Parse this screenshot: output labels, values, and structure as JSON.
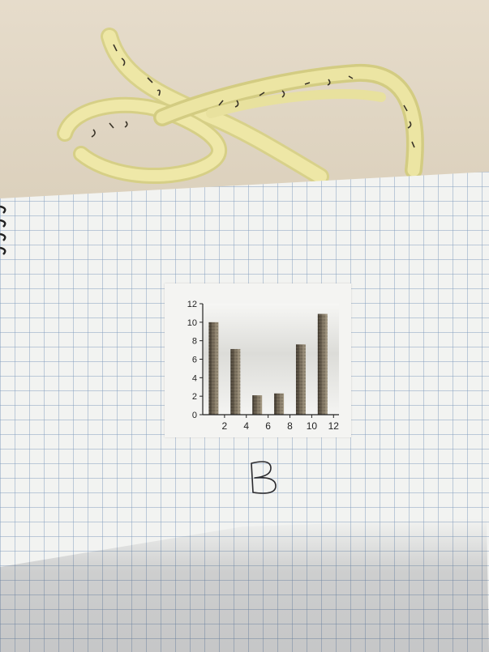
{
  "chart_data": {
    "type": "bar",
    "title": "",
    "xlabel": "",
    "ylabel": "",
    "categories": [
      1,
      3,
      5,
      7,
      9,
      11
    ],
    "values": [
      10,
      7.1,
      2.1,
      2.3,
      7.6,
      10.9
    ],
    "x_ticks": [
      "2",
      "4",
      "6",
      "8",
      "10",
      "12"
    ],
    "y_ticks": [
      "0",
      "2",
      "4",
      "6",
      "8",
      "10",
      "12"
    ],
    "xlim": [
      0,
      12.5
    ],
    "ylim": [
      0,
      12
    ],
    "grid": false,
    "bar_color": "#5a5246"
  },
  "handwritten_label": "B",
  "ribbon_text": "J G F S V D K H P M Z T Y R B E C N"
}
